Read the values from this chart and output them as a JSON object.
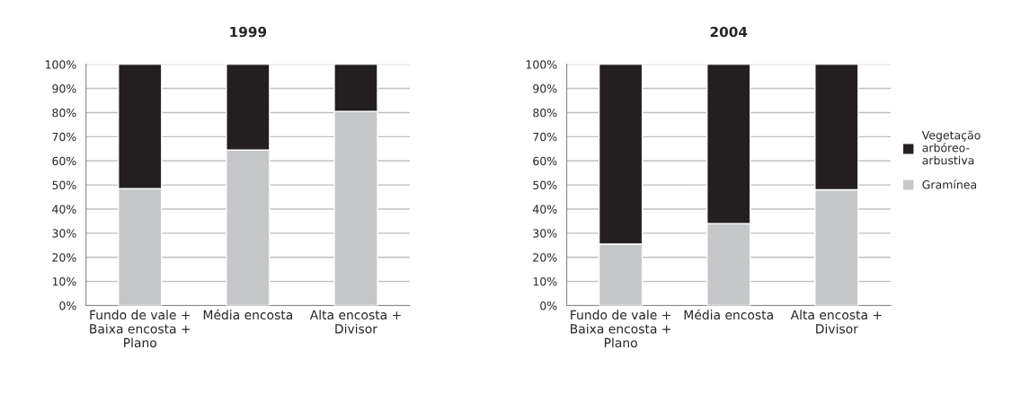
{
  "chart_data": [
    {
      "type": "bar",
      "title": "1999",
      "stacked": true,
      "categories": [
        "Fundo de vale +\nBaixa encosta +\nPlano",
        "Média encosta",
        "Alta encosta +\nDivisor"
      ],
      "series": [
        {
          "color": "#c6c7c9",
          "values": [
            48.5,
            64.5,
            80.5
          ]
        },
        {
          "color": "#231f20",
          "values": [
            51.5,
            35.5,
            19.5
          ]
        }
      ],
      "ylim": [
        0,
        100
      ],
      "yticks": [
        {
          "value": 0,
          "label": "0%"
        },
        {
          "value": 10,
          "label": "10%"
        },
        {
          "value": 20,
          "label": "20%"
        },
        {
          "value": 30,
          "label": "30%"
        },
        {
          "value": 40,
          "label": "40%"
        },
        {
          "value": 50,
          "label": "50%"
        },
        {
          "value": 60,
          "label": "60%"
        },
        {
          "value": 70,
          "label": "70%"
        },
        {
          "value": 80,
          "label": "80%"
        },
        {
          "value": 90,
          "label": "90%"
        },
        {
          "value": 100,
          "label": "100%"
        }
      ],
      "grid": "y",
      "legend": false
    },
    {
      "type": "bar",
      "title": "2004",
      "stacked": true,
      "categories": [
        "Fundo de vale +\nBaixa encosta +\nPlano",
        "Média encosta",
        "Alta encosta +\nDivisor"
      ],
      "series": [
        {
          "name": "Gramínea",
          "color": "#c6c7c9",
          "values": [
            25.5,
            34,
            48
          ]
        },
        {
          "name": "Vegetação\narbóreo-\narbustiva",
          "color": "#231f20",
          "values": [
            74.5,
            66,
            52
          ]
        }
      ],
      "ylim": [
        0,
        100
      ],
      "yticks": [
        {
          "value": 0,
          "label": "0%"
        },
        {
          "value": 10,
          "label": "10%"
        },
        {
          "value": 20,
          "label": "20%"
        },
        {
          "value": 30,
          "label": "30%"
        },
        {
          "value": 40,
          "label": "40%"
        },
        {
          "value": 50,
          "label": "50%"
        },
        {
          "value": 60,
          "label": "60%"
        },
        {
          "value": 70,
          "label": "70%"
        },
        {
          "value": 80,
          "label": "80%"
        },
        {
          "value": 90,
          "label": "90%"
        },
        {
          "value": 100,
          "label": "100%"
        }
      ],
      "grid": "y",
      "legend": "right"
    }
  ]
}
